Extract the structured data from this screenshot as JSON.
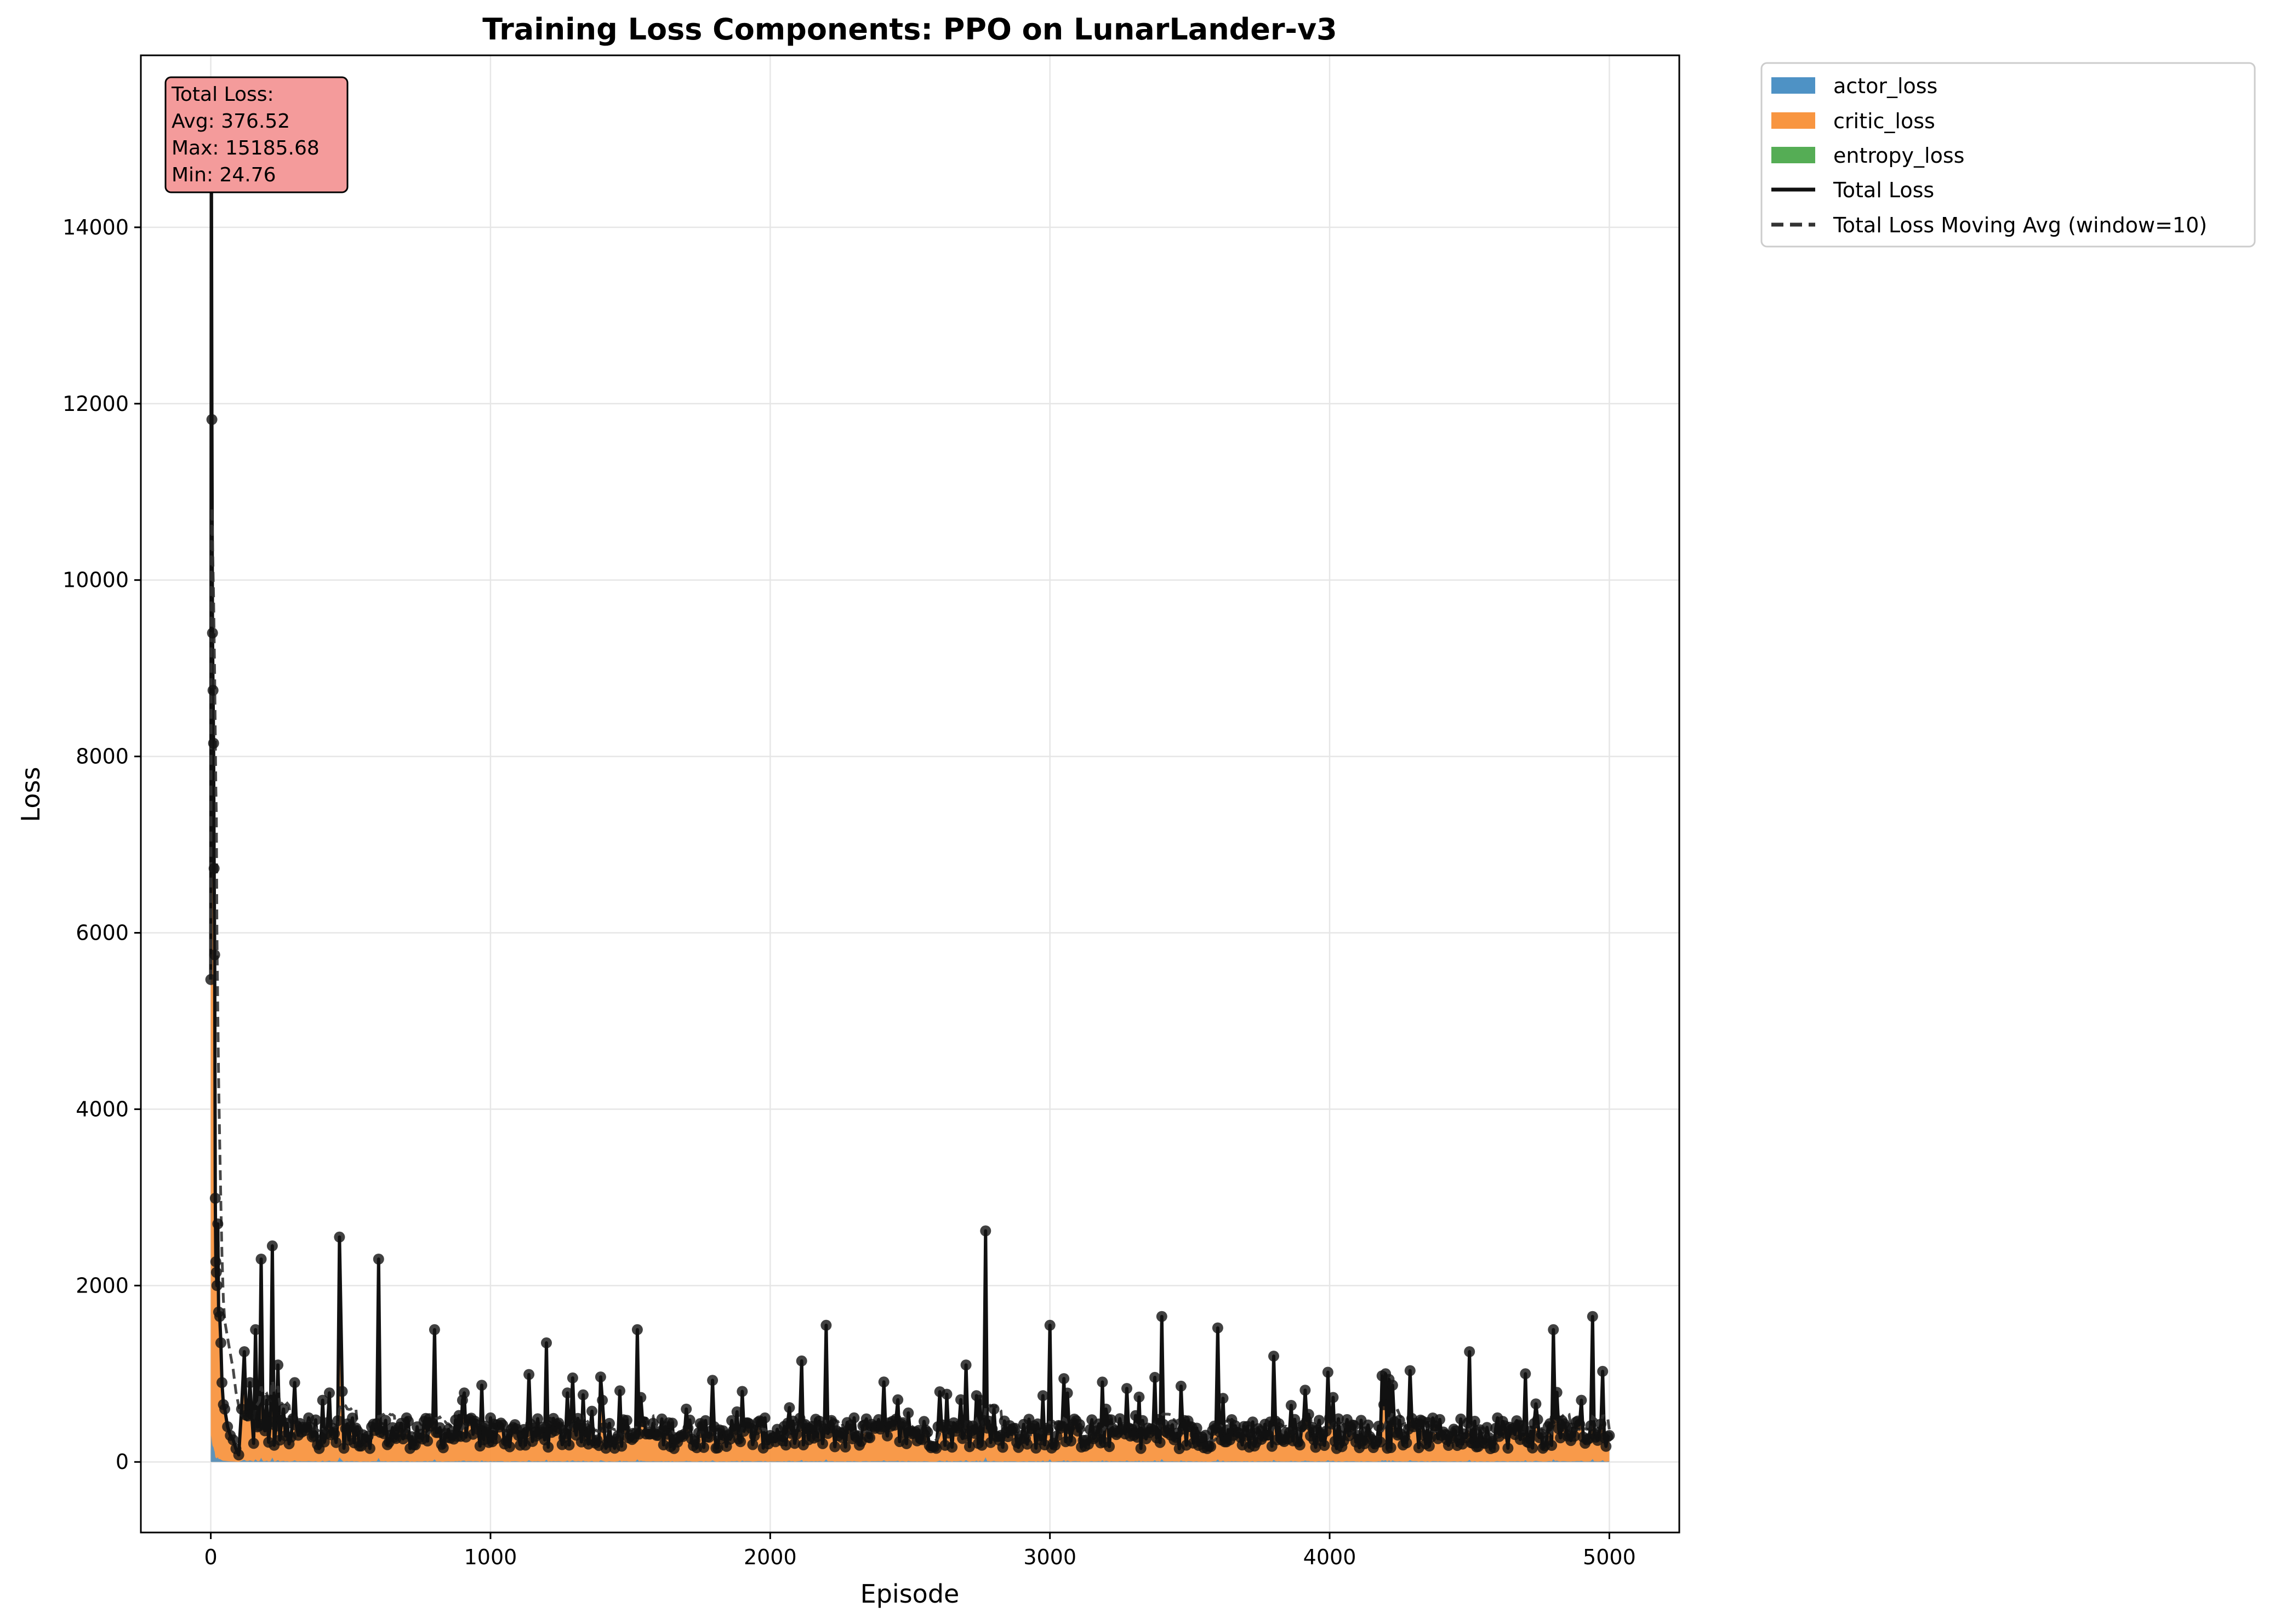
{
  "chart_data": {
    "type": "area",
    "title": "Training Loss Components: PPO on LunarLander-v3",
    "xlabel": "Episode",
    "ylabel": "Loss",
    "xlim": [
      -250,
      5250
    ],
    "ylim": [
      -800,
      15950
    ],
    "xticks": [
      0,
      1000,
      2000,
      3000,
      4000,
      5000
    ],
    "yticks": [
      0,
      2000,
      4000,
      6000,
      8000,
      10000,
      12000,
      14000
    ],
    "grid": true,
    "legend_position": "outside-top-right",
    "series": [
      {
        "name": "actor_loss",
        "kind": "stacked-area",
        "color": "#4e92c5"
      },
      {
        "name": "critic_loss",
        "kind": "stacked-area",
        "color": "#f89540"
      },
      {
        "name": "entropy_loss",
        "kind": "stacked-area",
        "color": "#55ad55"
      },
      {
        "name": "Total Loss",
        "kind": "line-with-markers",
        "color": "#111111"
      },
      {
        "name": "Total Loss Moving Avg (window=10)",
        "kind": "dashed-line",
        "color": "#333333"
      }
    ],
    "total_loss_keypoints": {
      "x": [
        0,
        2,
        4,
        6,
        8,
        10,
        12,
        14,
        16,
        18,
        20,
        22,
        25,
        28,
        32,
        36,
        40,
        45,
        50,
        60,
        70,
        80,
        90,
        100,
        110,
        120,
        140,
        160,
        180,
        200,
        220,
        240,
        260,
        300,
        350,
        400,
        460,
        470,
        500,
        600,
        700,
        800,
        900,
        1000,
        1100,
        1200,
        1300,
        1400,
        1500,
        1525,
        1600,
        1700,
        1800,
        1900,
        2000,
        2100,
        2200,
        2300,
        2400,
        2500,
        2600,
        2700,
        2750,
        2770,
        2800,
        2900,
        3000,
        3100,
        3200,
        3300,
        3400,
        3500,
        3600,
        3700,
        3800,
        3900,
        4000,
        4100,
        4200,
        4300,
        4400,
        4500,
        4600,
        4700,
        4800,
        4900,
        4940,
        5000
      ],
      "y": [
        5470,
        15185.68,
        11820,
        9400,
        8750,
        8150,
        6730,
        5750,
        2990,
        2270,
        2150,
        2000,
        2700,
        1700,
        1650,
        1350,
        900,
        650,
        600,
        400,
        300,
        250,
        150,
        80,
        600,
        1250,
        900,
        1500,
        2300,
        700,
        2450,
        1100,
        600,
        900,
        500,
        700,
        2550,
        800,
        400,
        2300,
        500,
        1500,
        700,
        500,
        300,
        1350,
        400,
        700,
        300,
        1500,
        300,
        600,
        400,
        800,
        300,
        400,
        1550,
        500,
        400,
        350,
        400,
        1100,
        700,
        2620,
        600,
        300,
        1550,
        350,
        600,
        300,
        1650,
        400,
        1520,
        300,
        1200,
        400,
        500,
        300,
        1000,
        400,
        300,
        1250,
        500,
        1000,
        1500,
        700,
        1650,
        300
      ]
    },
    "annotation": {
      "label": "Total Loss:",
      "avg": "Avg: 376.52",
      "max": "Max: 15185.68",
      "min": "Min: 24.76",
      "facecolor": "#f49b9b"
    }
  }
}
